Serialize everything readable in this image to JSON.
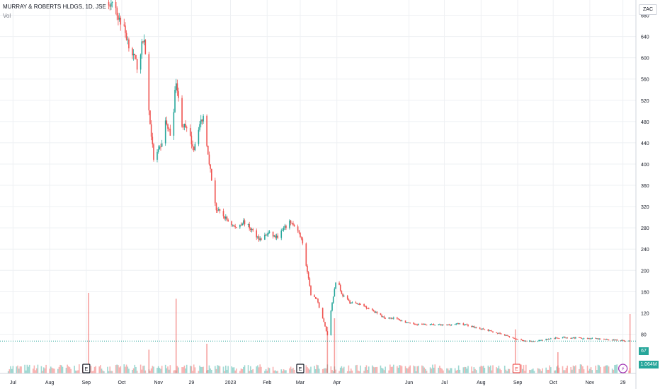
{
  "header": {
    "title": "MURRAY & ROBERTS HLDGS, 1D, JSE",
    "volume_label": "Vol"
  },
  "currency_badge": "ZAC",
  "last_price_label": "67",
  "last_volume_label": "1.064M",
  "colors": {
    "up": "#26a69a",
    "down": "#ef5350",
    "grid": "#eef0f3",
    "axis_text": "#131722",
    "dotted_price_line": "#26a69a"
  },
  "chart_data": {
    "type": "candlestick",
    "title": "MURRAY & ROBERTS HLDGS, 1D, JSE",
    "price_axis": {
      "ticks": [
        80,
        120,
        160,
        200,
        240,
        280,
        320,
        360,
        400,
        440,
        480,
        520,
        560,
        600,
        640,
        680
      ],
      "ylim": [
        46,
        698
      ],
      "currency": "ZAC"
    },
    "time_axis": {
      "ticks": [
        "Jul",
        "Aug",
        "Sep",
        "Oct",
        "Nov",
        "29",
        "2023",
        "Feb",
        "Mar",
        "Apr",
        "Jun",
        "Jul",
        "Aug",
        "Sep",
        "Oct",
        "Nov",
        "29"
      ],
      "tick_dates": [
        "2022-07-01",
        "2022-08-01",
        "2022-09-01",
        "2022-10-01",
        "2022-11-01",
        "2022-11-29",
        "2023-01-01",
        "2023-02-01",
        "2023-03-01",
        "2023-04-01",
        "2023-06-01",
        "2023-07-01",
        "2023-08-01",
        "2023-09-01",
        "2023-10-01",
        "2023-11-01",
        "2023-11-29"
      ],
      "xlim": [
        "2022-06-20",
        "2023-12-10"
      ]
    },
    "trend_points": [
      [
        "2022-09-20",
        705
      ],
      [
        "2022-09-25",
        690
      ],
      [
        "2022-10-02",
        660
      ],
      [
        "2022-10-08",
        620
      ],
      [
        "2022-10-14",
        585
      ],
      [
        "2022-10-20",
        640
      ],
      [
        "2022-10-24",
        500
      ],
      [
        "2022-10-28",
        410
      ],
      [
        "2022-11-03",
        430
      ],
      [
        "2022-11-07",
        480
      ],
      [
        "2022-11-12",
        450
      ],
      [
        "2022-11-16",
        560
      ],
      [
        "2022-11-20",
        480
      ],
      [
        "2022-11-26",
        460
      ],
      [
        "2022-12-01",
        430
      ],
      [
        "2022-12-05",
        470
      ],
      [
        "2022-12-09",
        490
      ],
      [
        "2022-12-12",
        440
      ],
      [
        "2022-12-16",
        370
      ],
      [
        "2022-12-20",
        315
      ],
      [
        "2022-12-27",
        300
      ],
      [
        "2023-01-05",
        280
      ],
      [
        "2023-01-12",
        292
      ],
      [
        "2023-01-19",
        276
      ],
      [
        "2023-01-26",
        258
      ],
      [
        "2023-02-02",
        270
      ],
      [
        "2023-02-09",
        262
      ],
      [
        "2023-02-16",
        280
      ],
      [
        "2023-02-21",
        292
      ],
      [
        "2023-02-25",
        278
      ],
      [
        "2023-03-02",
        262
      ],
      [
        "2023-03-06",
        210
      ],
      [
        "2023-03-10",
        155
      ],
      [
        "2023-03-15",
        145
      ],
      [
        "2023-03-20",
        110
      ],
      [
        "2023-03-24",
        78
      ],
      [
        "2023-03-28",
        140
      ],
      [
        "2023-04-01",
        190
      ],
      [
        "2023-04-05",
        155
      ],
      [
        "2023-04-12",
        140
      ],
      [
        "2023-04-22",
        135
      ],
      [
        "2023-05-01",
        125
      ],
      [
        "2023-05-10",
        112
      ],
      [
        "2023-05-20",
        110
      ],
      [
        "2023-06-01",
        100
      ],
      [
        "2023-06-15",
        98
      ],
      [
        "2023-07-01",
        97
      ],
      [
        "2023-07-15",
        100
      ],
      [
        "2023-08-01",
        90
      ],
      [
        "2023-08-15",
        82
      ],
      [
        "2023-08-25",
        75
      ],
      [
        "2023-09-01",
        70
      ],
      [
        "2023-09-08",
        66
      ],
      [
        "2023-09-18",
        68
      ],
      [
        "2023-10-01",
        72
      ],
      [
        "2023-10-10",
        74
      ],
      [
        "2023-10-20",
        73
      ],
      [
        "2023-11-01",
        72
      ],
      [
        "2023-11-15",
        70
      ],
      [
        "2023-11-29",
        68
      ],
      [
        "2023-12-05",
        67
      ]
    ],
    "last_price": 67,
    "volume": {
      "last_value": "1.064M",
      "spikes": [
        [
          "2022-09-03",
          0.95
        ],
        [
          "2022-10-24",
          0.28
        ],
        [
          "2022-11-16",
          0.88
        ],
        [
          "2022-12-12",
          0.35
        ],
        [
          "2023-03-24",
          0.55
        ],
        [
          "2023-03-30",
          0.65
        ],
        [
          "2023-08-30",
          0.52
        ],
        [
          "2023-10-05",
          0.25
        ],
        [
          "2023-12-05",
          0.7
        ]
      ]
    },
    "events": [
      {
        "date": "2022-09-01",
        "label": "E",
        "kind": "earnings"
      },
      {
        "date": "2023-03-01",
        "label": "E",
        "kind": "earnings"
      },
      {
        "date": "2023-08-31",
        "label": "E",
        "kind": "earnings-highlight"
      },
      {
        "date": "2023-11-29",
        "label": "⚡",
        "kind": "dividend"
      }
    ],
    "grid": true
  }
}
